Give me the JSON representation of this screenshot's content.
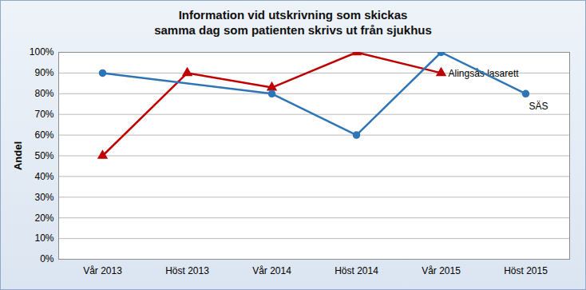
{
  "chart_data": {
    "type": "line",
    "title": "Information vid utskrivning som skickas\nsamma dag som patienten skrivs ut från sjukhus",
    "y_label": "Andel",
    "categories": [
      "Vår 2013",
      "Höst 2013",
      "Vår 2014",
      "Höst 2014",
      "Vår 2015",
      "Höst 2015"
    ],
    "series": [
      {
        "name": "Alingsås lasarett",
        "color": "#c00000",
        "marker": "triangle",
        "values": [
          50,
          90,
          83,
          100,
          90,
          null
        ]
      },
      {
        "name": "SÄS",
        "color": "#2e75b6",
        "marker": "circle",
        "values": [
          90,
          null,
          80,
          60,
          100,
          80
        ]
      }
    ],
    "ylim": [
      0,
      100
    ],
    "yticks": [
      {
        "value": 0,
        "label": "0%"
      },
      {
        "value": 10,
        "label": "10%"
      },
      {
        "value": 20,
        "label": "20%"
      },
      {
        "value": 30,
        "label": "30%"
      },
      {
        "value": 40,
        "label": "40%"
      },
      {
        "value": 50,
        "label": "50%"
      },
      {
        "value": 60,
        "label": "60%"
      },
      {
        "value": 70,
        "label": "70%"
      },
      {
        "value": 80,
        "label": "80%"
      },
      {
        "value": 90,
        "label": "90%"
      },
      {
        "value": 100,
        "label": "100%"
      }
    ],
    "grid": true
  }
}
